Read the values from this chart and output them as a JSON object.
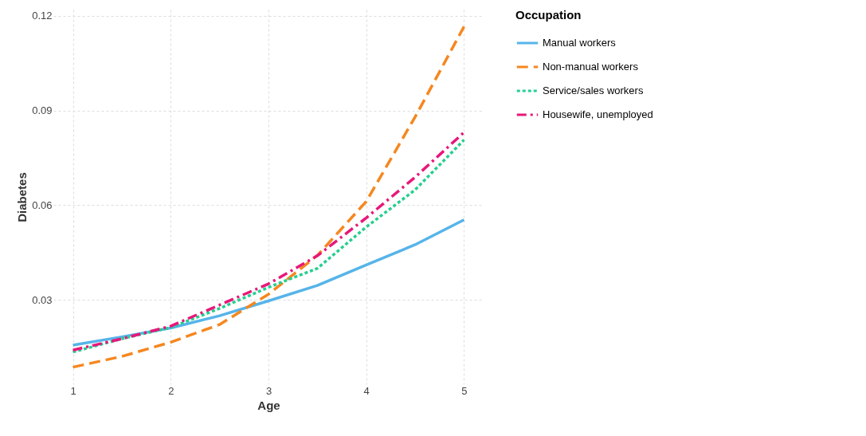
{
  "chart_data": {
    "type": "line",
    "xlabel": "Age",
    "ylabel": "Diabetes",
    "legend_title": "Occupation",
    "x": [
      1,
      1.5,
      2,
      2.5,
      3,
      3.5,
      4,
      4.5,
      5
    ],
    "xlim": [
      0.8,
      5.2
    ],
    "xticks": [
      1,
      2,
      3,
      4,
      5
    ],
    "ylim": [
      0.0033,
      0.122
    ],
    "yticks": [
      0.03,
      0.06,
      0.09,
      0.12
    ],
    "grid": true,
    "legend": "right",
    "marker": "none",
    "series": [
      {
        "name": "Manual workers",
        "color": "#56b4e9",
        "line_style": "solid",
        "values": [
          0.0157,
          0.0183,
          0.0211,
          0.025,
          0.0297,
          0.0346,
          0.0411,
          0.0475,
          0.0554
        ]
      },
      {
        "name": "Non-manual workers",
        "color": "#f5871f",
        "line_style": "dashed",
        "values": [
          0.0087,
          0.0121,
          0.0166,
          0.0222,
          0.0318,
          0.0441,
          0.0612,
          0.088,
          0.1166
        ]
      },
      {
        "name": "Service/sales workers",
        "color": "#25cf8f",
        "line_style": "dotted",
        "values": [
          0.0135,
          0.0177,
          0.0213,
          0.0273,
          0.034,
          0.04,
          0.0531,
          0.0649,
          0.0807
        ]
      },
      {
        "name": "Housewife, unemployed",
        "color": "#e8177a",
        "line_style": "dashdot",
        "values": [
          0.0141,
          0.0177,
          0.0217,
          0.0284,
          0.0351,
          0.044,
          0.056,
          0.0689,
          0.0831
        ]
      }
    ]
  }
}
